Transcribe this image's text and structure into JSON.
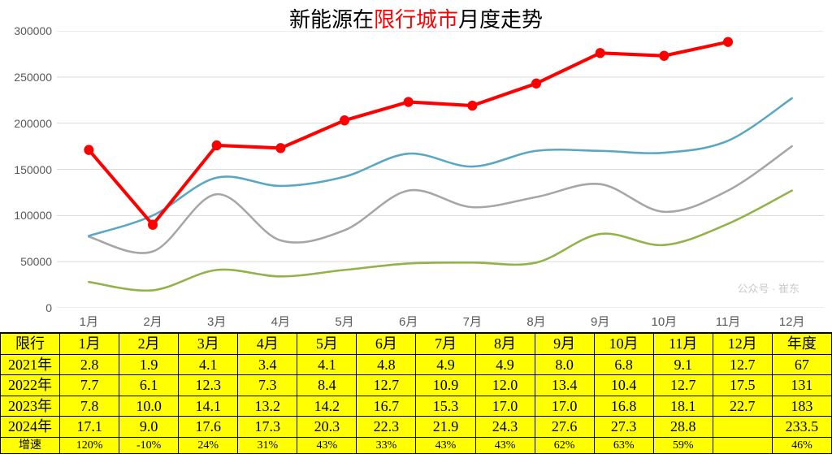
{
  "chart": {
    "type": "line",
    "title_parts": {
      "p1": "新能源在",
      "p2": "限行城市",
      "p3": "月度走势"
    },
    "title_fontsize": 26,
    "background_color": "#ffffff",
    "grid_color": "#d9d9d9",
    "axis_label_color": "#595959",
    "axis_fontsize": 14,
    "ylim": [
      0,
      300000
    ],
    "ytick_step": 50000,
    "yticks": [
      0,
      50000,
      100000,
      150000,
      200000,
      250000,
      300000
    ],
    "x_categories": [
      "1月",
      "2月",
      "3月",
      "4月",
      "5月",
      "6月",
      "7月",
      "8月",
      "9月",
      "10月",
      "11月",
      "12月"
    ],
    "series": [
      {
        "name": "2021年",
        "color": "#92b24a",
        "line_width": 2.5,
        "show_markers": false,
        "smooth": true,
        "values": [
          28000,
          19000,
          41000,
          34000,
          41000,
          48000,
          49000,
          49000,
          80000,
          68000,
          91000,
          127000
        ]
      },
      {
        "name": "2022年",
        "color": "#a6a6a6",
        "line_width": 2.5,
        "show_markers": false,
        "smooth": true,
        "values": [
          77000,
          61000,
          123000,
          73000,
          84000,
          127000,
          109000,
          120000,
          134000,
          104000,
          127000,
          175000
        ]
      },
      {
        "name": "2023年",
        "color": "#5aa7c4",
        "line_width": 2.5,
        "show_markers": false,
        "smooth": true,
        "values": [
          78000,
          100000,
          141000,
          132000,
          142000,
          167000,
          153000,
          170000,
          170000,
          168000,
          181000,
          227000
        ]
      },
      {
        "name": "2024年",
        "color": "#ff0000",
        "line_width": 4,
        "show_markers": true,
        "marker_radius": 6,
        "smooth": false,
        "values": [
          171000,
          90000,
          176000,
          173000,
          203000,
          223000,
          219000,
          243000,
          276000,
          273000,
          288000
        ]
      }
    ]
  },
  "table": {
    "header_bg": "#ffff00",
    "cell_bg": "#ffff00",
    "border_color": "#000000",
    "font_family": "SimSun",
    "fontsize": 18,
    "growth_fontsize": 14,
    "columns": [
      "限行",
      "1月",
      "2月",
      "3月",
      "4月",
      "5月",
      "6月",
      "7月",
      "8月",
      "9月",
      "10月",
      "11月",
      "12月",
      "年度"
    ],
    "rows": [
      {
        "label": "2021年",
        "cells": [
          "2.8",
          "1.9",
          "4.1",
          "3.4",
          "4.1",
          "4.8",
          "4.9",
          "4.9",
          "8.0",
          "6.8",
          "9.1",
          "12.7",
          "67"
        ]
      },
      {
        "label": "2022年",
        "cells": [
          "7.7",
          "6.1",
          "12.3",
          "7.3",
          "8.4",
          "12.7",
          "10.9",
          "12.0",
          "13.4",
          "10.4",
          "12.7",
          "17.5",
          "131"
        ]
      },
      {
        "label": "2023年",
        "cells": [
          "7.8",
          "10.0",
          "14.1",
          "13.2",
          "14.2",
          "16.7",
          "15.3",
          "17.0",
          "17.0",
          "16.8",
          "18.1",
          "22.7",
          "183"
        ]
      },
      {
        "label": "2024年",
        "cells": [
          "17.1",
          "9.0",
          "17.6",
          "17.3",
          "20.3",
          "22.3",
          "21.9",
          "24.3",
          "27.6",
          "27.3",
          "28.8",
          "",
          "233.5"
        ]
      },
      {
        "label": "增速",
        "cells": [
          "120%",
          "-10%",
          "24%",
          "31%",
          "43%",
          "33%",
          "43%",
          "43%",
          "62%",
          "63%",
          "59%",
          "",
          "46%"
        ],
        "is_growth": true
      }
    ]
  },
  "watermark": "公众号 · 崔东"
}
